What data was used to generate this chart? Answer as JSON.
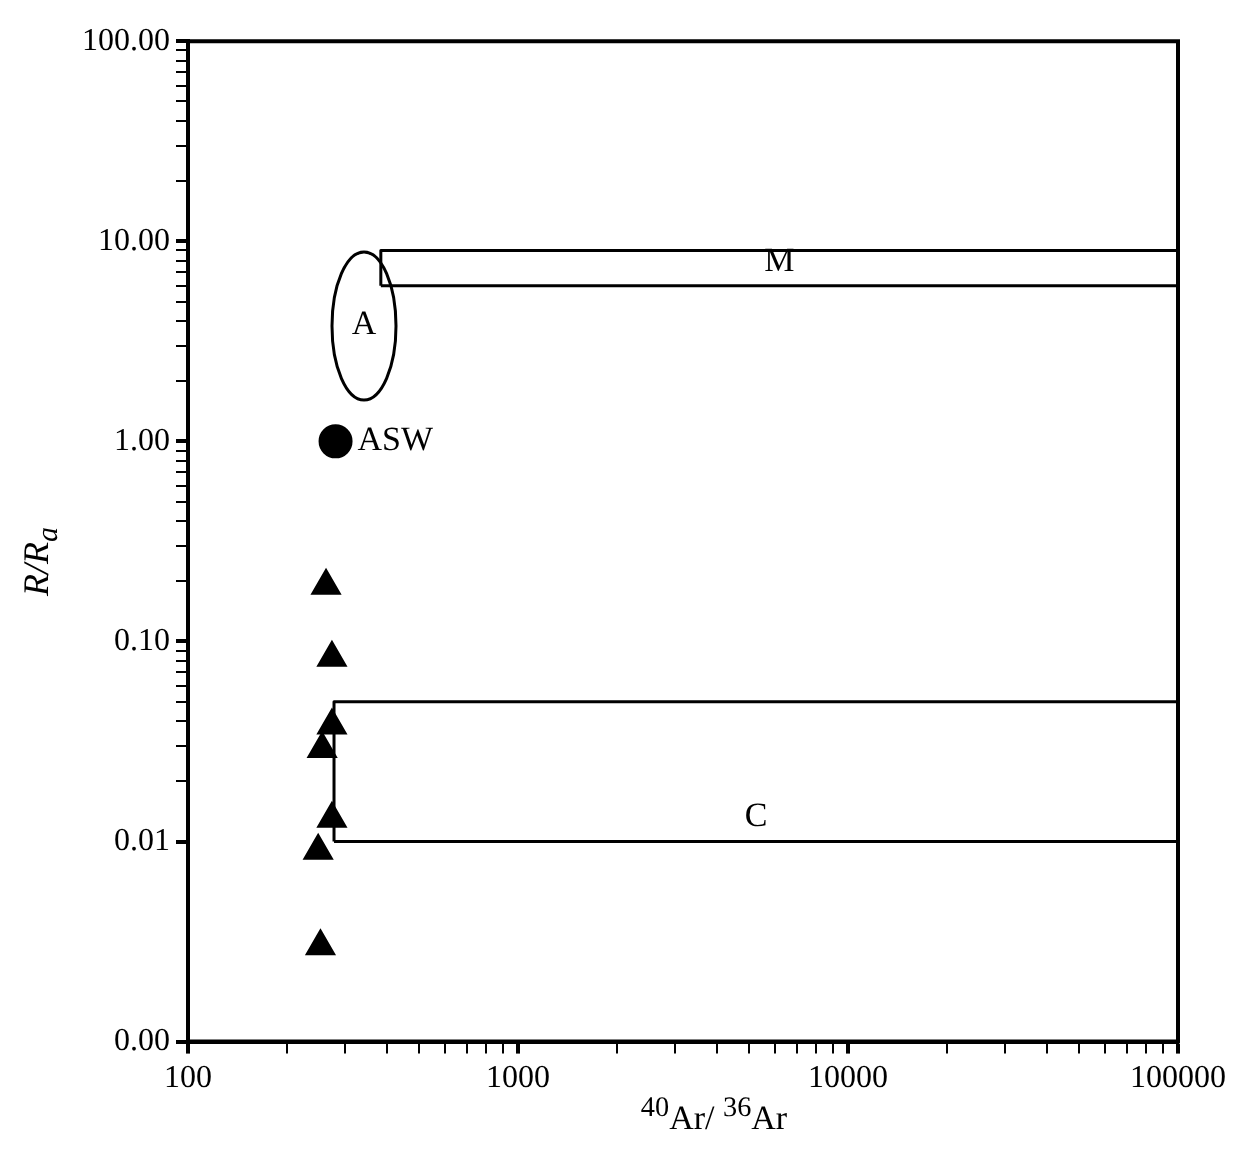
{
  "chart_data": {
    "type": "scatter",
    "xlabel": "$^{40}$Ar/ $^{36}$Ar",
    "ylabel": "R/R$_{a}$",
    "log": "xy",
    "grid": false,
    "legend": false,
    "xlim": [
      100,
      100000
    ],
    "ylim": [
      0.001,
      100
    ],
    "xticks": [
      100,
      {
        "value": 200,
        "label": null
      },
      {
        "value": 300,
        "label": null
      },
      {
        "value": 400,
        "label": null
      },
      {
        "value": 500,
        "label": null
      },
      {
        "value": 600,
        "label": null
      },
      {
        "value": 700,
        "label": null
      },
      {
        "value": 800,
        "label": null
      },
      {
        "value": 900,
        "label": null
      },
      1000,
      {
        "value": 2000,
        "label": null
      },
      {
        "value": 3000,
        "label": null
      },
      {
        "value": 4000,
        "label": null
      },
      {
        "value": 5000,
        "label": null
      },
      {
        "value": 6000,
        "label": null
      },
      {
        "value": 7000,
        "label": null
      },
      {
        "value": 8000,
        "label": null
      },
      {
        "value": 9000,
        "label": null
      },
      10000,
      {
        "value": 20000,
        "label": null
      },
      {
        "value": 30000,
        "label": null
      },
      {
        "value": 40000,
        "label": null
      },
      {
        "value": 50000,
        "label": null
      },
      {
        "value": 60000,
        "label": null
      },
      {
        "value": 70000,
        "label": null
      },
      {
        "value": 80000,
        "label": null
      },
      {
        "value": 90000,
        "label": null
      },
      100000
    ],
    "yticks": [
      {
        "value": 0.001,
        "label": "0.00"
      },
      {
        "value": 0.01,
        "label": "0.01"
      },
      {
        "value": 0.02,
        "label": null
      },
      {
        "value": 0.03,
        "label": null
      },
      {
        "value": 0.04,
        "label": null
      },
      {
        "value": 0.05,
        "label": null
      },
      {
        "value": 0.06,
        "label": null
      },
      {
        "value": 0.07,
        "label": null
      },
      {
        "value": 0.08,
        "label": null
      },
      {
        "value": 0.09,
        "label": null
      },
      {
        "value": 0.1,
        "label": "0.10"
      },
      {
        "value": 0.2,
        "label": null
      },
      {
        "value": 0.3,
        "label": null
      },
      {
        "value": 0.4,
        "label": null
      },
      {
        "value": 0.5,
        "label": null
      },
      {
        "value": 0.6,
        "label": null
      },
      {
        "value": 0.7,
        "label": null
      },
      {
        "value": 0.8,
        "label": null
      },
      {
        "value": 0.9,
        "label": null
      },
      {
        "value": 1,
        "label": "1.00"
      },
      {
        "value": 2,
        "label": null
      },
      {
        "value": 3,
        "label": null
      },
      {
        "value": 4,
        "label": null
      },
      {
        "value": 5,
        "label": null
      },
      {
        "value": 6,
        "label": null
      },
      {
        "value": 7,
        "label": null
      },
      {
        "value": 8,
        "label": null
      },
      {
        "value": 9,
        "label": null
      },
      {
        "value": 10,
        "label": "10.00"
      },
      {
        "value": 20,
        "label": null
      },
      {
        "value": 30,
        "label": null
      },
      {
        "value": 40,
        "label": null
      },
      {
        "value": 50,
        "label": null
      },
      {
        "value": 60,
        "label": null
      },
      {
        "value": 70,
        "label": null
      },
      {
        "value": 80,
        "label": null
      },
      {
        "value": 90,
        "label": null
      },
      {
        "value": 100,
        "label": "100.00"
      }
    ],
    "series": [
      {
        "marker": "triangle",
        "color": "#000000",
        "x": [
          262,
          273,
          273,
          255,
          273,
          248,
          252
        ],
        "values": [
          0.19,
          0.083,
          0.038,
          0.029,
          0.013,
          0.009,
          0.003
        ]
      },
      {
        "marker": "circle",
        "name": "ASW",
        "color": "#000000",
        "x": [
          280
        ],
        "values": [
          1
        ]
      },
      {
        "type": "line",
        "marker": "none",
        "color": "#000000",
        "x": [
          384,
          384,
          100000
        ],
        "values": [
          6,
          9,
          9
        ]
      },
      {
        "type": "line",
        "marker": "none",
        "name": "M",
        "color": "#000000",
        "x": [
          384,
          100000
        ],
        "values": [
          6,
          6
        ]
      },
      {
        "type": "line",
        "marker": "none",
        "color": "#000000",
        "x": [
          277,
          277,
          100000
        ],
        "values": [
          0.01,
          0.05,
          0.05
        ]
      },
      {
        "type": "line",
        "marker": "none",
        "name": "C",
        "color": "#000000",
        "x": [
          277,
          100000
        ],
        "values": [
          0.01,
          0.01
        ]
      }
    ],
    "annotations": [
      "A"
    ]
  }
}
